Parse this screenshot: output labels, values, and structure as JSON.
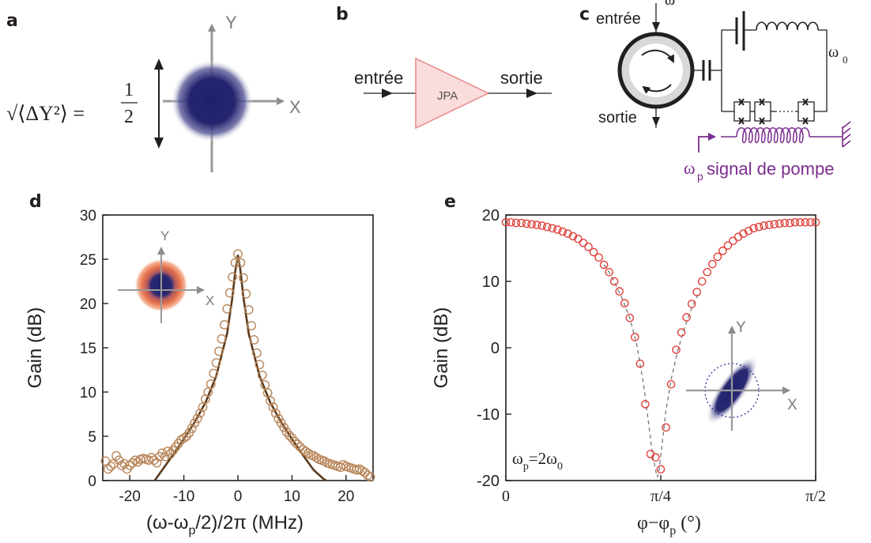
{
  "panels": {
    "a": {
      "label": "a",
      "equation_lhs": "√⟨ΔY²⟩ =",
      "equation_num": "1",
      "equation_den": "2",
      "axis_x": "X",
      "axis_y": "Y"
    },
    "b": {
      "label": "b",
      "input": "entrée",
      "output": "sortie",
      "amplifier": "JPA"
    },
    "c": {
      "label": "c",
      "input": "entrée",
      "output": "sortie",
      "omega": "ω",
      "omega0": "ω",
      "omega0_sub": "0",
      "pump_symbol": "ω",
      "pump_sub": "p",
      "pump_text": "signal de pompe"
    },
    "d": {
      "label": "d",
      "inset_x": "X",
      "inset_y": "Y"
    },
    "e": {
      "label": "e",
      "annotation": "ω",
      "annotation_sub1": "p",
      "annotation_mid": "=2ω",
      "annotation_sub2": "0",
      "inset_x": "X",
      "inset_y": "Y"
    }
  },
  "colors": {
    "state_blue": "#1f1f6b",
    "thermal_orange": "#e8734a",
    "jpa_fill": "#fbdcdc",
    "jpa_stroke": "#e88a8a",
    "curve_d": "#5b3a1c",
    "points_d": "#b8865a",
    "points_e": "#e0403a",
    "pump": "#7b2d8e"
  },
  "chart_data": [
    {
      "type": "scatter",
      "panel": "d",
      "xlabel": "(ω-ω",
      "xlabel_sub": "p",
      "xlabel_tail": "/2)/2π (MHz)",
      "ylabel": "Gain (dB)",
      "xlim": [
        -25,
        25
      ],
      "ylim": [
        0,
        30
      ],
      "xticks": [
        -20,
        -10,
        0,
        10,
        20
      ],
      "xtick_labels": [
        "-20",
        "-10",
        "0",
        "10",
        "20"
      ],
      "yticks": [
        0,
        5,
        10,
        15,
        20,
        25,
        30
      ],
      "ytick_labels": [
        "0",
        "5",
        "10",
        "15",
        "20",
        "25",
        "30"
      ],
      "series": [
        {
          "kind": "points",
          "x": [
            -24.5,
            -24,
            -23.5,
            -23,
            -22.5,
            -22,
            -21.5,
            -21,
            -20.5,
            -20,
            -19.5,
            -19,
            -18.5,
            -18,
            -17.5,
            -17,
            -16.5,
            -16,
            -15.5,
            -15,
            -14.5,
            -14,
            -13.5,
            -13,
            -12.5,
            -12,
            -11.5,
            -11,
            -10.5,
            -10,
            -9.5,
            -9,
            -8.5,
            -8,
            -7.5,
            -7,
            -6.5,
            -6,
            -5.5,
            -5,
            -4.5,
            -4,
            -3.5,
            -3,
            -2.5,
            -2,
            -1.5,
            -1,
            -0.5,
            0,
            0.5,
            1,
            1.5,
            2,
            2.5,
            3,
            3.5,
            4,
            4.5,
            5,
            5.5,
            6,
            6.5,
            7,
            7.5,
            8,
            8.5,
            9,
            9.5,
            10,
            10.5,
            11,
            11.5,
            12,
            12.5,
            13,
            13.5,
            14,
            14.5,
            15,
            15.5,
            16,
            16.5,
            17,
            17.5,
            18,
            18.5,
            19,
            19.5,
            20,
            20.5,
            21,
            21.5,
            22,
            22.5,
            23,
            23.5,
            24,
            24.5
          ],
          "y": [
            2.2,
            1.3,
            1.6,
            1.9,
            2.8,
            2.3,
            1.7,
            1.9,
            1.3,
            1.7,
            2.0,
            2.3,
            2.1,
            2.4,
            2.5,
            2.4,
            2.3,
            2.6,
            2.3,
            2.0,
            2.7,
            3.1,
            2.7,
            3.3,
            3.0,
            3.4,
            3.8,
            4.2,
            4.6,
            4.8,
            5.0,
            5.4,
            5.9,
            6.5,
            7.0,
            7.6,
            8.3,
            9.2,
            10.0,
            10.9,
            12.1,
            13.3,
            14.6,
            16.0,
            17.6,
            19.4,
            21.2,
            23.0,
            24.6,
            25.6,
            24.6,
            22.9,
            21.1,
            19.3,
            17.5,
            15.9,
            14.4,
            13.1,
            11.9,
            10.8,
            9.9,
            9.0,
            8.3,
            7.6,
            7.0,
            6.5,
            6.0,
            5.5,
            5.1,
            4.8,
            4.4,
            4.1,
            3.8,
            3.5,
            3.3,
            3.1,
            2.9,
            2.8,
            2.6,
            2.4,
            2.3,
            2.2,
            2.0,
            1.9,
            1.8,
            1.7,
            1.6,
            1.5,
            1.8,
            1.6,
            1.5,
            1.4,
            1.3,
            1.2,
            1.3,
            1.1,
            0.9,
            0.6,
            0.4
          ]
        },
        {
          "kind": "fit",
          "x": [
            -15.4,
            -14,
            -12,
            -10,
            -8,
            -6,
            -4,
            -2,
            -1,
            -0.5,
            0,
            0.5,
            1,
            2,
            4,
            6,
            8,
            10,
            12,
            14,
            16,
            16.4
          ],
          "y": [
            0,
            1.2,
            2.9,
            4.7,
            6.6,
            8.8,
            11.8,
            16.6,
            20.8,
            23.6,
            25.5,
            23.6,
            20.8,
            16.6,
            11.8,
            8.8,
            6.6,
            4.7,
            2.9,
            1.2,
            0.1,
            0
          ]
        }
      ]
    },
    {
      "type": "scatter",
      "panel": "e",
      "xlabel": "φ−φ",
      "xlabel_sub": "p",
      "xlabel_tail": " (°)",
      "ylabel": "Gain (dB)",
      "xlim": [
        0,
        90
      ],
      "ylim": [
        -20,
        20
      ],
      "xticks": [
        0,
        45,
        90
      ],
      "xtick_labels": [
        "0",
        "π/4",
        "π/2"
      ],
      "yticks": [
        -20,
        -10,
        0,
        10,
        20
      ],
      "ytick_labels": [
        "-20",
        "-10",
        "0",
        "10",
        "20"
      ],
      "series": [
        {
          "kind": "points",
          "x": [
            0,
            1.5,
            3,
            4.5,
            6,
            7.5,
            9,
            10.5,
            12,
            13.5,
            15,
            16.5,
            18,
            19.5,
            21,
            22.5,
            24,
            25.5,
            27,
            28.5,
            30,
            31.5,
            33,
            34.5,
            36,
            37.5,
            39,
            40.5,
            42,
            43.5,
            45,
            46.5,
            48,
            49.5,
            51,
            52.5,
            54,
            55.5,
            57,
            58.5,
            60,
            61.5,
            63,
            64.5,
            66,
            67.5,
            69,
            70.5,
            72,
            73.5,
            75,
            76.5,
            78,
            79.5,
            81,
            82.5,
            84,
            85.5,
            87,
            88.5,
            90
          ],
          "y": [
            18.9,
            18.9,
            18.8,
            18.8,
            18.7,
            18.6,
            18.5,
            18.4,
            18.2,
            18.0,
            17.8,
            17.5,
            17.2,
            16.8,
            16.4,
            15.8,
            15.2,
            14.4,
            13.6,
            12.5,
            11.4,
            10.0,
            8.5,
            6.7,
            4.5,
            1.6,
            -2.4,
            -8.5,
            -16.0,
            -16.5,
            -18.3,
            -12.0,
            -5.5,
            -0.3,
            2.3,
            4.6,
            6.6,
            8.4,
            10.0,
            11.4,
            12.6,
            13.7,
            14.6,
            15.4,
            16.1,
            16.7,
            17.2,
            17.6,
            18.0,
            18.2,
            18.4,
            18.5,
            18.6,
            18.7,
            18.8,
            18.8,
            18.9,
            18.9,
            18.9,
            18.9,
            18.9
          ]
        },
        {
          "kind": "guide",
          "x": [
            28.5,
            30,
            32,
            34,
            36,
            38,
            40,
            41.5,
            42.5,
            43.5,
            44,
            44.5,
            45.5,
            46.5,
            48,
            50,
            52,
            54,
            56
          ],
          "y": [
            12.5,
            11.4,
            9.4,
            7.2,
            4.5,
            0.6,
            -5.5,
            -11.5,
            -15.8,
            -18.5,
            -19.5,
            -18.5,
            -14.0,
            -9.5,
            -4.8,
            -0.3,
            3.2,
            6.0,
            8.2
          ]
        }
      ]
    }
  ]
}
